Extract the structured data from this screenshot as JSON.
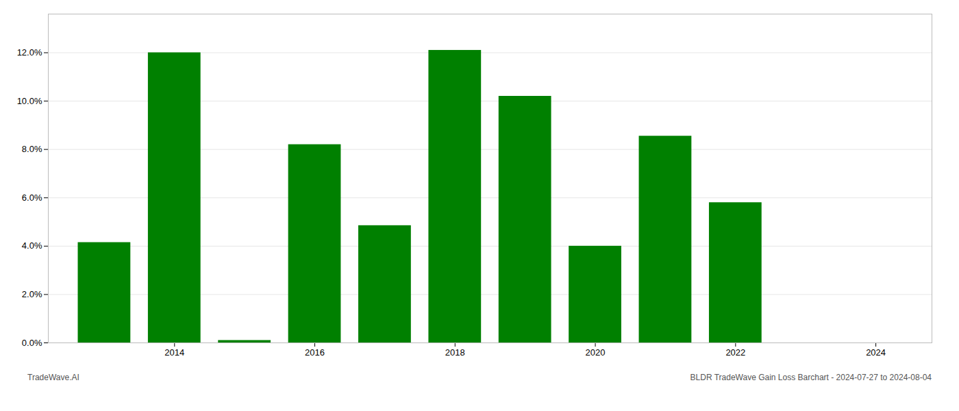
{
  "chart_data": {
    "type": "bar",
    "x": [
      2013,
      2014,
      2015,
      2016,
      2017,
      2018,
      2019,
      2020,
      2021,
      2022
    ],
    "values": [
      0.0415,
      0.12,
      0.001,
      0.082,
      0.0485,
      0.121,
      0.102,
      0.04,
      0.0855,
      0.058
    ],
    "color": "#008000",
    "xlim": [
      2012.2,
      2024.8
    ],
    "xticks": [
      2014,
      2016,
      2018,
      2020,
      2022,
      2024
    ],
    "ylim": [
      0,
      0.136
    ],
    "yticks": [
      {
        "value": 0.0,
        "label": "0.0%"
      },
      {
        "value": 0.02,
        "label": "2.0%"
      },
      {
        "value": 0.04,
        "label": "4.0%"
      },
      {
        "value": 0.06,
        "label": "6.0%"
      },
      {
        "value": 0.08,
        "label": "8.0%"
      },
      {
        "value": 0.1,
        "label": "10.0%"
      },
      {
        "value": 0.12,
        "label": "12.0%"
      }
    ],
    "grid": true,
    "annotations": [
      "TradeWave.AI",
      "BLDR TradeWave Gain Loss Barchart - 2024-07-27 to 2024-08-04"
    ]
  }
}
